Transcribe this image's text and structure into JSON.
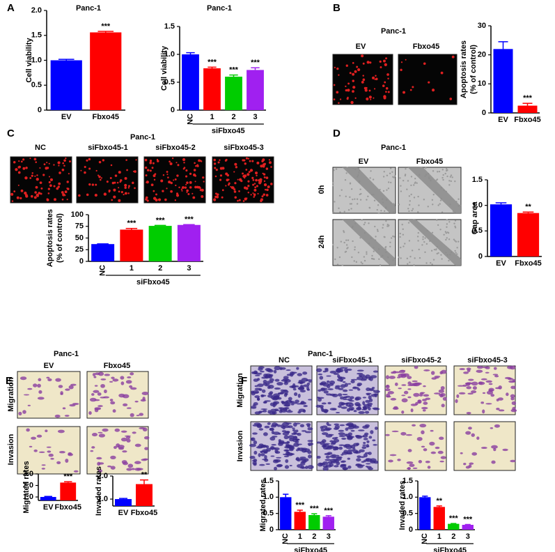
{
  "panel_letters": [
    "A",
    "B",
    "C",
    "D",
    "E",
    "F"
  ],
  "images": {
    "B": {
      "title": "Panc-1",
      "columns": [
        "EV",
        "Fbxo45"
      ]
    },
    "C": {
      "title": "Panc-1",
      "columns": [
        "NC",
        "siFbxo45-1",
        "siFbxo45-2",
        "siFbxo45-3"
      ]
    },
    "D": {
      "title": "Panc-1",
      "columns": [
        "EV",
        "Fbxo45"
      ],
      "rows": [
        "0h",
        "24h"
      ]
    },
    "E": {
      "title": "Panc-1",
      "columns": [
        "EV",
        "Fbxo45"
      ],
      "rows": [
        "Migration",
        "Invasion"
      ]
    },
    "F": {
      "title": "Panc-1",
      "columns": [
        "NC",
        "siFbxo45-1",
        "siFbxo45-2",
        "siFbxo45-3"
      ],
      "rows": [
        "Migration",
        "Invasion"
      ]
    }
  },
  "chart_data": [
    {
      "type": "bar",
      "title": "Panc-1",
      "ylabel": [
        "Cell viability"
      ],
      "categories": [
        "EV",
        "Fbxo45"
      ],
      "values": [
        1.0,
        1.56
      ],
      "errors": [
        0.02,
        0.02
      ],
      "annotations": [
        null,
        "***"
      ],
      "colors": [
        "#0000ff",
        "#ff0000"
      ],
      "ylim": [
        0,
        2
      ],
      "yticks": [
        0,
        0.5,
        {
          "value": 1,
          "label": "1.0"
        },
        1.5,
        {
          "value": 2,
          "label": "2.0"
        }
      ]
    },
    {
      "type": "bar",
      "title": "Panc-1",
      "ylabel": [
        "Cell viability"
      ],
      "categories": [
        "NC",
        "1",
        "2",
        "3"
      ],
      "group_label": "siFbxo45",
      "values": [
        1.0,
        0.75,
        0.6,
        0.72
      ],
      "errors": [
        0.03,
        0.02,
        0.03,
        0.04
      ],
      "annotations": [
        null,
        "***",
        "***",
        "***"
      ],
      "colors": [
        "#0000ff",
        "#ff0000",
        "#00cc00",
        "#a020f0"
      ],
      "ylim": [
        0,
        1.5
      ],
      "yticks": [
        0,
        0.5,
        {
          "value": 1,
          "label": "1.0"
        },
        1.5
      ]
    },
    {
      "type": "bar",
      "ylabel": [
        "Apoptosis rates",
        "(% of control)"
      ],
      "categories": [
        "EV",
        "Fbxo45"
      ],
      "values": [
        22,
        2.5
      ],
      "errors": [
        2.5,
        0.8
      ],
      "annotations": [
        null,
        "***"
      ],
      "colors": [
        "#0000ff",
        "#ff0000"
      ],
      "ylim": [
        0,
        30
      ],
      "yticks": [
        0,
        10,
        20,
        30
      ]
    },
    {
      "type": "bar",
      "ylabel": [
        "Apoptosis rates",
        "(% of control)"
      ],
      "categories": [
        "NC",
        "1",
        "2",
        "3"
      ],
      "group_label": "siFbxo45",
      "values": [
        37,
        68,
        76,
        78
      ],
      "errors": [
        0.5,
        2.5,
        1,
        0.8
      ],
      "annotations": [
        null,
        "***",
        "***",
        "***"
      ],
      "colors": [
        "#0000ff",
        "#ff0000",
        "#00cc00",
        "#a020f0"
      ],
      "ylim": [
        0,
        100
      ],
      "yticks": [
        0,
        25,
        50,
        75,
        100
      ]
    },
    {
      "type": "bar",
      "ylabel": [
        "Gap area"
      ],
      "categories": [
        "EV",
        "Fbxo45"
      ],
      "values": [
        1.02,
        0.85
      ],
      "errors": [
        0.03,
        0.02
      ],
      "annotations": [
        null,
        "**"
      ],
      "colors": [
        "#0000ff",
        "#ff0000"
      ],
      "ylim": [
        0,
        1.5
      ],
      "yticks": [
        0,
        0.5,
        {
          "value": 1,
          "label": "1.0"
        },
        1.5
      ]
    },
    {
      "type": "bar",
      "ylabel": [
        "Migrated rates"
      ],
      "categories": [
        "EV",
        "Fbxo45"
      ],
      "values": [
        1.0,
        2.25
      ],
      "errors": [
        0.05,
        0.08
      ],
      "annotations": [
        null,
        "***"
      ],
      "colors": [
        "#0000ff",
        "#ff0000"
      ],
      "ylim": [
        0.7,
        3.0
      ],
      "yticks": [
        {
          "value": 1,
          "label": "1.0"
        },
        {
          "value": 2,
          "label": "2.0"
        },
        {
          "value": 3,
          "label": "3.0"
        }
      ]
    },
    {
      "type": "bar",
      "ylabel": [
        "Invaded rates"
      ],
      "categories": [
        "EV",
        "Fbxo45"
      ],
      "values": [
        1.0,
        1.65
      ],
      "errors": [
        0.03,
        0.18
      ],
      "annotations": [
        null,
        "**"
      ],
      "colors": [
        "#0000ff",
        "#ff0000"
      ],
      "ylim": [
        0.7,
        2.0
      ],
      "yticks": [
        {
          "value": 1,
          "label": "1.0"
        },
        {
          "value": 2,
          "label": "2.0"
        }
      ]
    },
    {
      "type": "bar",
      "ylabel": [
        "Migrated rates"
      ],
      "categories": [
        "NC",
        "1",
        "2",
        "3"
      ],
      "group_label": "siFbxo45",
      "values": [
        1.0,
        0.55,
        0.45,
        0.4
      ],
      "errors": [
        0.09,
        0.05,
        0.04,
        0.03
      ],
      "annotations": [
        null,
        "***",
        "***",
        "***"
      ],
      "colors": [
        "#0000ff",
        "#ff0000",
        "#00cc00",
        "#a020f0"
      ],
      "ylim": [
        0,
        1.5
      ],
      "yticks": [
        0,
        0.5,
        {
          "value": 1,
          "label": "1.0"
        },
        1.5
      ]
    },
    {
      "type": "bar",
      "ylabel": [
        "Invaded rates"
      ],
      "categories": [
        "NC",
        "1",
        "2",
        "3"
      ],
      "group_label": "siFbxo45",
      "values": [
        1.0,
        0.7,
        0.18,
        0.15
      ],
      "errors": [
        0.03,
        0.03,
        0.01,
        0.01
      ],
      "annotations": [
        null,
        "**",
        "***",
        "***"
      ],
      "colors": [
        "#0000ff",
        "#ff0000",
        "#00cc00",
        "#a020f0"
      ],
      "ylim": [
        0,
        1.5
      ],
      "yticks": [
        0,
        0.5,
        {
          "value": 1,
          "label": "1.0"
        },
        1.5
      ]
    }
  ]
}
